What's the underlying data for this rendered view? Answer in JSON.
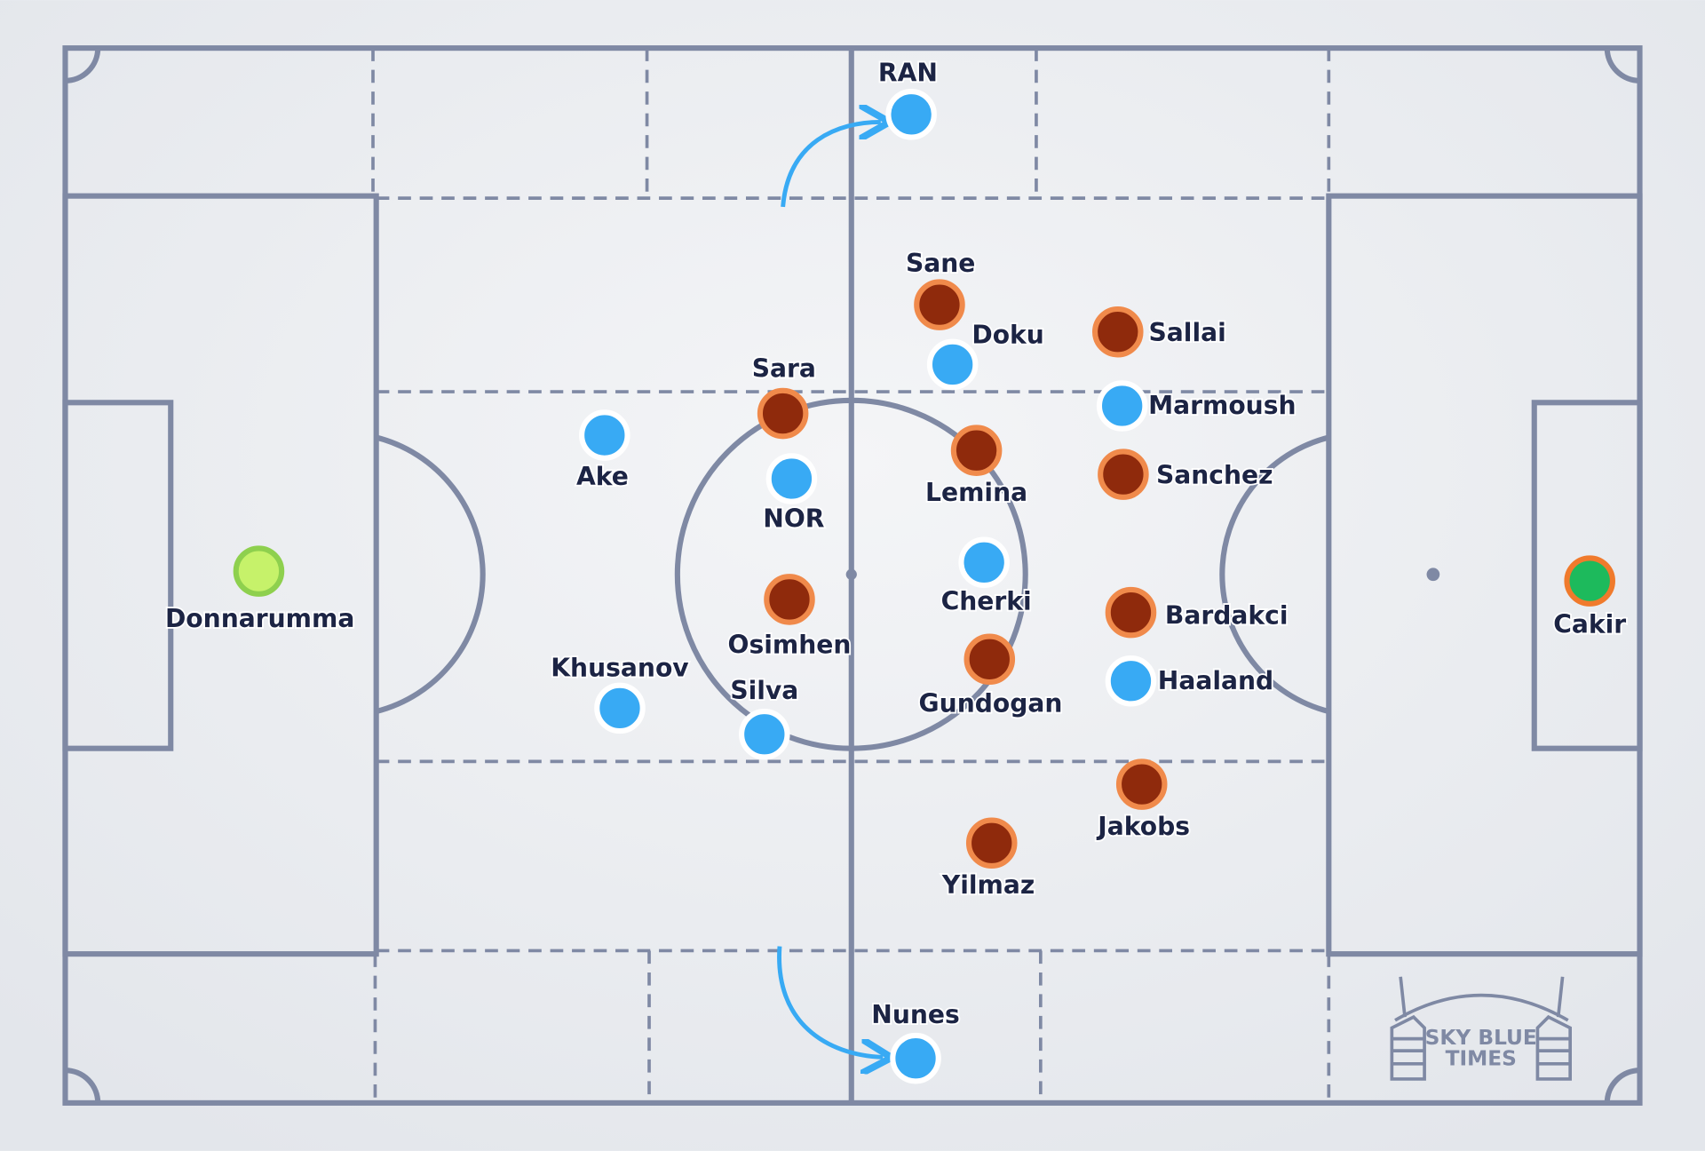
{
  "players": [
    {
      "name": "RAN",
      "fill": "#38aaf4",
      "stroke": "#ffffff"
    },
    {
      "name": "Sane",
      "fill": "#8f2a0c",
      "stroke": "#f08a4b"
    },
    {
      "name": "Doku",
      "fill": "#38aaf4",
      "stroke": "#ffffff"
    },
    {
      "name": "Sallai",
      "fill": "#8f2a0c",
      "stroke": "#f08a4b"
    },
    {
      "name": "Marmoush",
      "fill": "#38aaf4",
      "stroke": "#ffffff"
    },
    {
      "name": "Sara",
      "fill": "#8f2a0c",
      "stroke": "#f08a4b"
    },
    {
      "name": "Ake",
      "fill": "#38aaf4",
      "stroke": "#ffffff"
    },
    {
      "name": "NOR",
      "fill": "#38aaf4",
      "stroke": "#ffffff"
    },
    {
      "name": "Lemina",
      "fill": "#8f2a0c",
      "stroke": "#f08a4b"
    },
    {
      "name": "Sanchez",
      "fill": "#8f2a0c",
      "stroke": "#f08a4b"
    },
    {
      "name": "Donnarumma",
      "fill": "#c6f26a",
      "stroke": "#8ed04e"
    },
    {
      "name": "Cakir",
      "fill": "#1dba5c",
      "stroke": "#f07a2c"
    },
    {
      "name": "Cherki",
      "fill": "#38aaf4",
      "stroke": "#ffffff"
    },
    {
      "name": "Osimhen",
      "fill": "#8f2a0c",
      "stroke": "#f08a4b"
    },
    {
      "name": "Bardakci",
      "fill": "#8f2a0c",
      "stroke": "#f08a4b"
    },
    {
      "name": "Khusanov",
      "fill": "#38aaf4",
      "stroke": "#ffffff"
    },
    {
      "name": "Silva",
      "fill": "#38aaf4",
      "stroke": "#ffffff"
    },
    {
      "name": "Gundogan",
      "fill": "#8f2a0c",
      "stroke": "#f08a4b"
    },
    {
      "name": "Haaland",
      "fill": "#38aaf4",
      "stroke": "#ffffff"
    },
    {
      "name": "Jakobs",
      "fill": "#8f2a0c",
      "stroke": "#f08a4b"
    },
    {
      "name": "Yilmaz",
      "fill": "#8f2a0c",
      "stroke": "#f08a4b"
    },
    {
      "name": "Nunes",
      "fill": "#38aaf4",
      "stroke": "#ffffff"
    }
  ],
  "logo": {
    "line1": "SKY BLUE",
    "line2": "TIMES"
  }
}
